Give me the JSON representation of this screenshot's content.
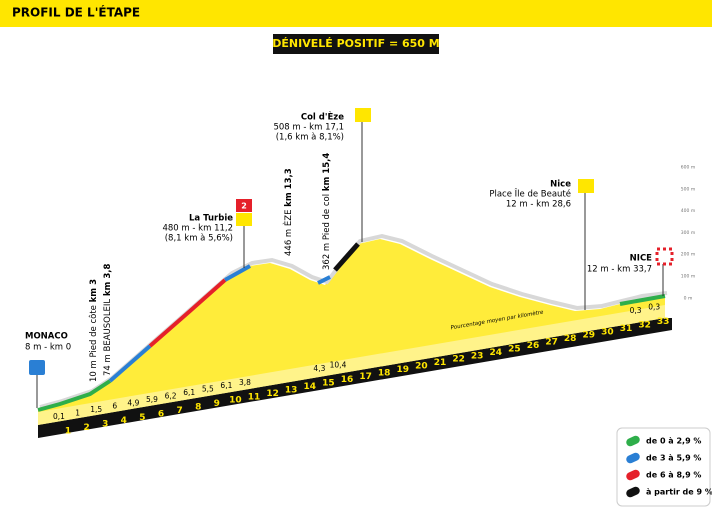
{
  "header": {
    "title": "PROFIL DE L'ÉTAPE"
  },
  "banner": "DÉNIVELÉ POSITIF = 650 M",
  "places": {
    "start": {
      "name": "MONACO",
      "info": "8 m - km 0"
    },
    "turbie": {
      "name": "La Turbie",
      "info": "480 m -  km 11,2",
      "detail": "(8,1 km à 5,6%)",
      "category": "2"
    },
    "eze": {
      "name": "Col d'Èze",
      "info": "508 m - km 17,1",
      "detail": "(1,6 km à 8,1%)"
    },
    "nice": {
      "name": "Nice",
      "place": "Place Île de Beauté",
      "info": "12 m - km 28,6"
    },
    "finish": {
      "name": "NICE",
      "info": "12 m - km 33,7"
    }
  },
  "vertical_labels": [
    {
      "text": "10 m Pied de côte",
      "bold": "km 3"
    },
    {
      "text": "74 m BEAUSOLEIL",
      "bold": "km 3,8"
    },
    {
      "text": "446 m ÈZE",
      "bold": "km 13,3"
    },
    {
      "text": "362 m Pied de col",
      "bold": "km 15,4"
    }
  ],
  "km_labels": [
    1,
    2,
    3,
    4,
    5,
    6,
    7,
    8,
    9,
    10,
    11,
    12,
    13,
    14,
    15,
    16,
    17,
    18,
    19,
    20,
    21,
    22,
    23,
    24,
    25,
    26,
    27,
    28,
    29,
    30,
    31,
    32,
    33
  ],
  "gradients": [
    "0,1",
    "1",
    "1,5",
    "6",
    "4,9",
    "5,9",
    "6,2",
    "6,1",
    "5,5",
    "6,1",
    "3,8",
    null,
    null,
    null,
    "4,3",
    "10,4",
    null,
    null,
    null,
    null,
    null,
    null,
    null,
    null,
    null,
    null,
    null,
    null,
    null,
    null,
    null,
    "0,3",
    "0,3"
  ],
  "gradient_caption": "Pourcentage moyen par kilomètre",
  "altitude_axis": [
    "600 m",
    "500 m",
    "400 m",
    "300 m",
    "200 m",
    "100 m",
    "0 m"
  ],
  "legend": [
    {
      "label": "de 0 à 2,9 %",
      "color": "#2eae4a"
    },
    {
      "label": "de 3 à 5,9 %",
      "color": "#2a7fd4"
    },
    {
      "label": "de 6 à 8,9 %",
      "color": "#e5202a"
    },
    {
      "label": "à partir de 9 %",
      "color": "#111111"
    }
  ]
}
